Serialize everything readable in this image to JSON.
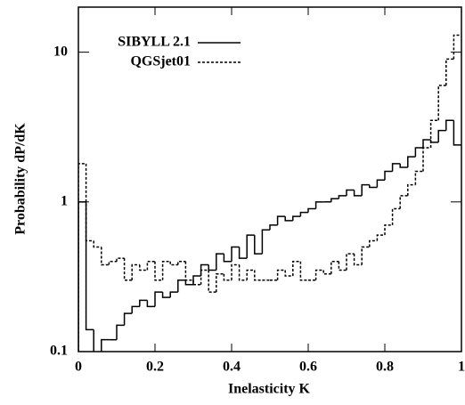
{
  "chart_data": {
    "type": "histogram",
    "x_label": "Inelasticity   K",
    "y_label": "Probability   dP/dK",
    "bins": [
      0,
      0.02,
      0.04,
      0.06,
      0.08,
      0.1,
      0.12,
      0.14,
      0.16,
      0.18,
      0.2,
      0.22,
      0.24,
      0.26,
      0.28,
      0.3,
      0.32,
      0.34,
      0.36,
      0.38,
      0.4,
      0.42,
      0.44,
      0.46,
      0.48,
      0.5,
      0.52,
      0.54,
      0.56,
      0.58,
      0.6,
      0.62,
      0.64,
      0.66,
      0.68,
      0.7,
      0.72,
      0.74,
      0.76,
      0.78,
      0.8,
      0.82,
      0.84,
      0.86,
      0.88,
      0.9,
      0.92,
      0.94,
      0.96,
      0.98,
      1
    ],
    "series": [
      {
        "name": "SIBYLL 2.1",
        "color": "#000000",
        "dash": "solid",
        "values": [
          1.0,
          0.14,
          0.08,
          0.12,
          0.12,
          0.15,
          0.18,
          0.2,
          0.22,
          0.2,
          0.25,
          0.23,
          0.25,
          0.3,
          0.28,
          0.32,
          0.38,
          0.35,
          0.45,
          0.4,
          0.5,
          0.42,
          0.6,
          0.45,
          0.65,
          0.7,
          0.8,
          0.75,
          0.8,
          0.85,
          0.9,
          1.0,
          1.0,
          1.05,
          1.1,
          1.2,
          1.1,
          1.3,
          1.25,
          1.4,
          1.6,
          1.8,
          1.7,
          2.0,
          2.3,
          2.6,
          2.5,
          3.0,
          3.5,
          2.4
        ]
      },
      {
        "name": "QGSjet01",
        "color": "#000000",
        "dash": "dotted",
        "values": [
          1.8,
          0.55,
          0.5,
          0.38,
          0.4,
          0.42,
          0.3,
          0.38,
          0.35,
          0.4,
          0.3,
          0.4,
          0.38,
          0.4,
          0.3,
          0.28,
          0.35,
          0.25,
          0.33,
          0.3,
          0.38,
          0.3,
          0.35,
          0.3,
          0.3,
          0.3,
          0.35,
          0.32,
          0.4,
          0.3,
          0.3,
          0.35,
          0.33,
          0.4,
          0.35,
          0.45,
          0.38,
          0.5,
          0.55,
          0.6,
          0.7,
          0.9,
          1.1,
          1.3,
          1.6,
          2.3,
          3.5,
          6,
          9,
          13
        ]
      }
    ],
    "xlim": [
      0,
      1
    ],
    "xticks": [
      0,
      0.2,
      0.4,
      0.6,
      0.8,
      1
    ],
    "ylim": [
      0.1,
      20
    ],
    "yticks": [
      0.1,
      1,
      10
    ],
    "log_y": true,
    "legend": "upper left"
  }
}
